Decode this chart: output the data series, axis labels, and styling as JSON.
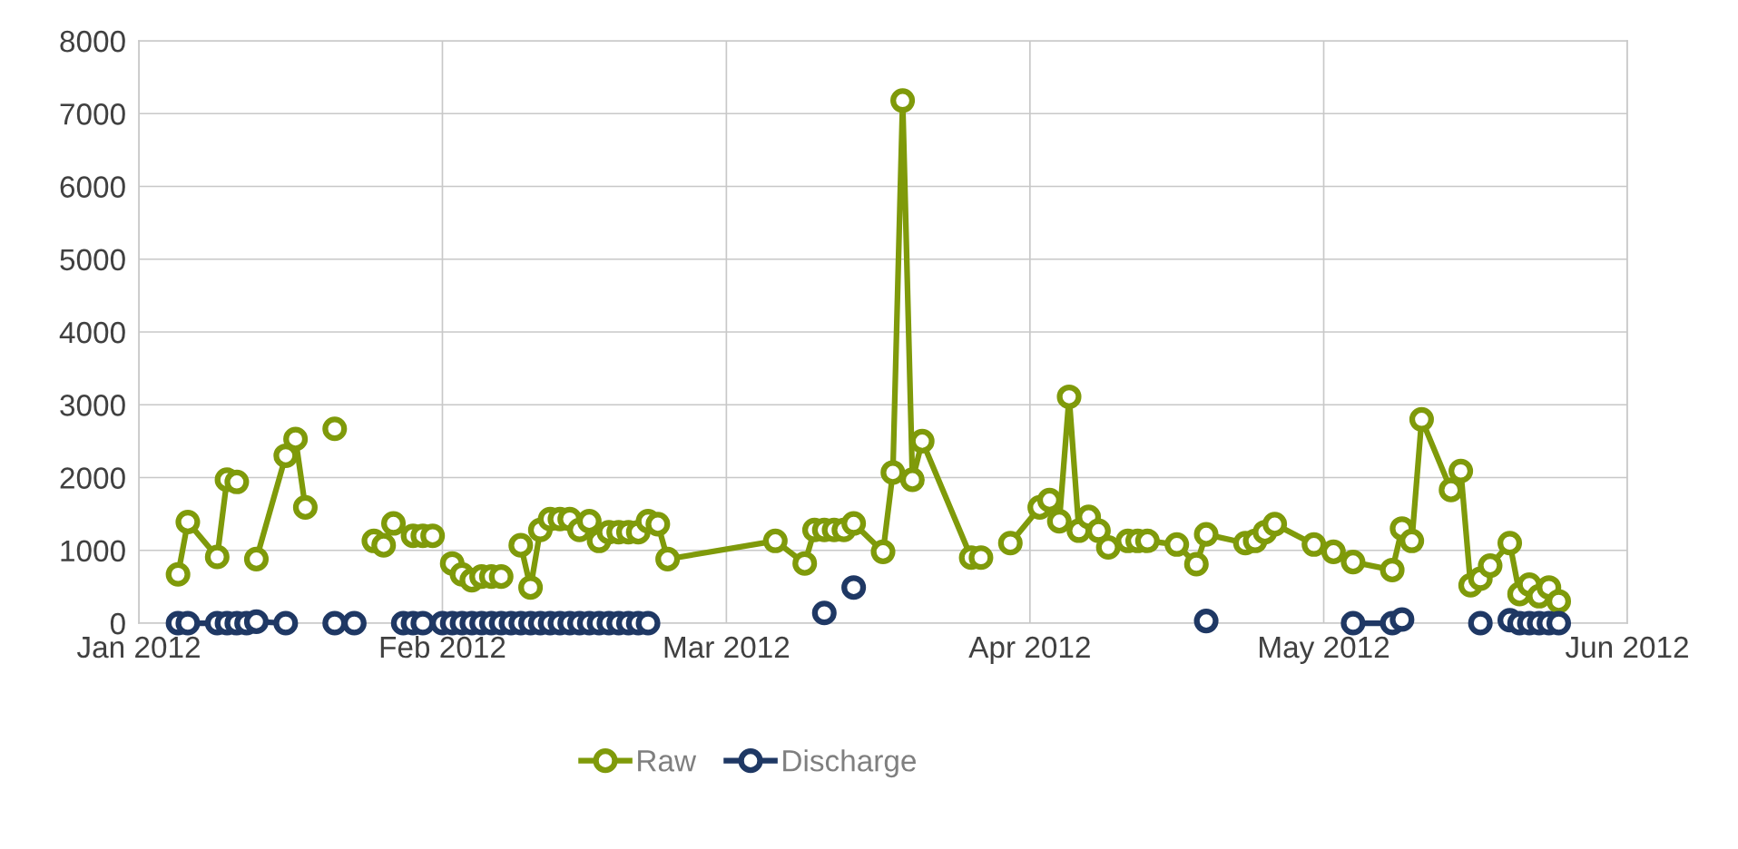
{
  "chart_data": {
    "type": "line",
    "marker": "circle",
    "line_style": "solid",
    "grid": true,
    "legend": "bottom",
    "xlim": [
      "2012-01-01",
      "2012-06-01"
    ],
    "xticks": [
      {
        "value": "2012-01-01",
        "label": "Jan 2012"
      },
      {
        "value": "2012-02-01",
        "label": "Feb 2012"
      },
      {
        "value": "2012-03-01",
        "label": "Mar 2012"
      },
      {
        "value": "2012-04-01",
        "label": "Apr 2012"
      },
      {
        "value": "2012-05-01",
        "label": "May 2012"
      },
      {
        "value": "2012-06-01",
        "label": "Jun 2012"
      }
    ],
    "ylim": [
      0,
      8000
    ],
    "yticks": [
      0,
      1000,
      2000,
      3000,
      4000,
      5000,
      6000,
      7000,
      8000
    ],
    "series": [
      {
        "name": "Raw",
        "color": "#7f9a0a",
        "x": [
          "2012-01-05",
          "2012-01-06",
          "2012-01-09",
          "2012-01-10",
          "2012-01-11",
          "2012-01-12",
          "2012-01-13",
          "2012-01-16",
          "2012-01-17",
          "2012-01-18",
          "2012-01-19",
          "2012-01-21",
          "2012-01-22",
          "2012-01-25",
          "2012-01-26",
          "2012-01-27",
          "2012-01-29",
          "2012-01-30",
          "2012-01-31",
          "2012-02-01",
          "2012-02-02",
          "2012-02-03",
          "2012-02-04",
          "2012-02-05",
          "2012-02-06",
          "2012-02-07",
          "2012-02-08",
          "2012-02-09",
          "2012-02-10",
          "2012-02-11",
          "2012-02-12",
          "2012-02-13",
          "2012-02-14",
          "2012-02-15",
          "2012-02-16",
          "2012-02-17",
          "2012-02-18",
          "2012-02-19",
          "2012-02-20",
          "2012-02-21",
          "2012-02-22",
          "2012-02-23",
          "2012-02-24",
          "2012-03-06",
          "2012-03-09",
          "2012-03-10",
          "2012-03-11",
          "2012-03-12",
          "2012-03-13",
          "2012-03-14",
          "2012-03-17",
          "2012-03-18",
          "2012-03-19",
          "2012-03-20",
          "2012-03-21",
          "2012-03-26",
          "2012-03-27",
          "2012-03-28",
          "2012-03-30",
          "2012-04-02",
          "2012-04-03",
          "2012-04-04",
          "2012-04-05",
          "2012-04-06",
          "2012-04-07",
          "2012-04-08",
          "2012-04-09",
          "2012-04-11",
          "2012-04-12",
          "2012-04-13",
          "2012-04-16",
          "2012-04-18",
          "2012-04-19",
          "2012-04-23",
          "2012-04-24",
          "2012-04-25",
          "2012-04-26",
          "2012-04-30",
          "2012-05-02",
          "2012-05-04",
          "2012-05-08",
          "2012-05-09",
          "2012-05-10",
          "2012-05-11",
          "2012-05-14",
          "2012-05-15",
          "2012-05-16",
          "2012-05-17",
          "2012-05-18",
          "2012-05-20",
          "2012-05-21",
          "2012-05-22",
          "2012-05-23",
          "2012-05-24",
          "2012-05-25"
        ],
        "values": [
          670,
          1390,
          910,
          1970,
          1940,
          null,
          880,
          2300,
          2530,
          1590,
          null,
          2670,
          null,
          1130,
          1070,
          1370,
          1200,
          1200,
          1200,
          null,
          820,
          670,
          590,
          640,
          640,
          640,
          null,
          1070,
          490,
          1280,
          1430,
          1430,
          1430,
          1280,
          1400,
          1130,
          1250,
          1250,
          1250,
          1250,
          1400,
          1360,
          880,
          1130,
          820,
          1280,
          1280,
          1280,
          1280,
          1370,
          980,
          2070,
          7180,
          1970,
          2500,
          900,
          900,
          null,
          1100,
          1590,
          1690,
          1400,
          3110,
          1270,
          1460,
          1270,
          1040,
          1130,
          1130,
          1130,
          1080,
          810,
          1220,
          1100,
          1130,
          1250,
          1360,
          1080,
          980,
          840,
          730,
          1300,
          1130,
          2800,
          1830,
          2090,
          520,
          610,
          790,
          1100,
          400,
          530,
          370,
          490,
          300
        ]
      },
      {
        "name": "Discharge",
        "color": "#1f3864",
        "x": [
          "2012-01-05",
          "2012-01-06",
          "2012-01-09",
          "2012-01-10",
          "2012-01-11",
          "2012-01-12",
          "2012-01-13",
          "2012-01-16",
          "2012-01-17",
          "2012-01-21",
          "2012-01-22",
          "2012-01-23",
          "2012-01-24",
          "2012-01-28",
          "2012-01-29",
          "2012-01-30",
          "2012-02-01",
          "2012-02-02",
          "2012-02-03",
          "2012-02-04",
          "2012-02-05",
          "2012-02-06",
          "2012-02-07",
          "2012-02-08",
          "2012-02-09",
          "2012-02-10",
          "2012-02-11",
          "2012-02-12",
          "2012-02-13",
          "2012-02-14",
          "2012-02-15",
          "2012-02-16",
          "2012-02-17",
          "2012-02-18",
          "2012-02-19",
          "2012-02-20",
          "2012-02-21",
          "2012-02-22",
          "2012-02-23",
          "2012-03-11",
          "2012-03-12",
          "2012-03-14",
          "2012-03-15",
          "2012-04-19",
          "2012-04-20",
          "2012-05-04",
          "2012-05-08",
          "2012-05-09",
          "2012-05-10",
          "2012-05-17",
          "2012-05-18",
          "2012-05-20",
          "2012-05-21",
          "2012-05-22",
          "2012-05-23",
          "2012-05-24",
          "2012-05-25"
        ],
        "values": [
          0,
          0,
          0,
          0,
          0,
          0,
          20,
          0,
          null,
          0,
          null,
          0,
          null,
          0,
          0,
          0,
          0,
          0,
          0,
          0,
          0,
          0,
          0,
          0,
          0,
          0,
          0,
          0,
          0,
          0,
          0,
          0,
          0,
          0,
          0,
          0,
          0,
          0,
          null,
          140,
          null,
          490,
          null,
          30,
          null,
          0,
          0,
          50,
          null,
          0,
          null,
          40,
          0,
          0,
          0,
          0,
          0
        ]
      }
    ]
  }
}
